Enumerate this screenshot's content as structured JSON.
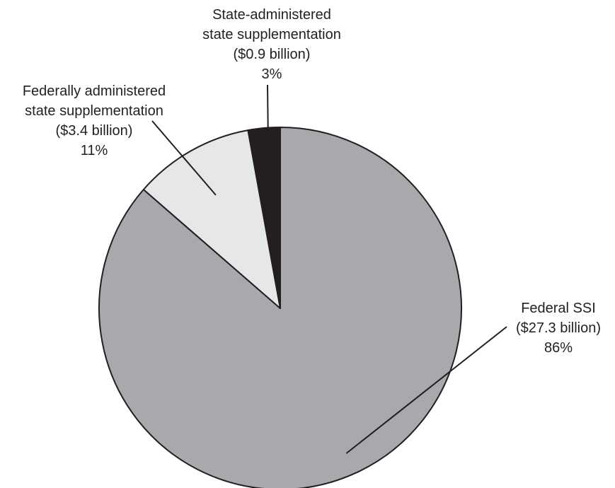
{
  "chart_data": {
    "type": "pie",
    "title": "",
    "start": "12 o'clock",
    "direction": "clockwise",
    "slices": [
      {
        "name": "Federal SSI",
        "amount": "($27.3 billion)",
        "value_billion": 27.3,
        "percent": 86,
        "percent_label": "86%",
        "color": "#a7a9ac"
      },
      {
        "name": "Federally administered state supplementation",
        "name_lines": [
          "Federally administered",
          "state supplementation"
        ],
        "amount": "($3.4 billion)",
        "value_billion": 3.4,
        "percent": 11,
        "percent_label": "11%",
        "color": "#e6e7e8"
      },
      {
        "name": "State-administered state supplementation",
        "name_lines": [
          "State-administered",
          "state supplementation"
        ],
        "amount": "($0.9 billion)",
        "value_billion": 0.9,
        "percent": 3,
        "percent_label": "3%",
        "color": "#231f20"
      }
    ]
  }
}
